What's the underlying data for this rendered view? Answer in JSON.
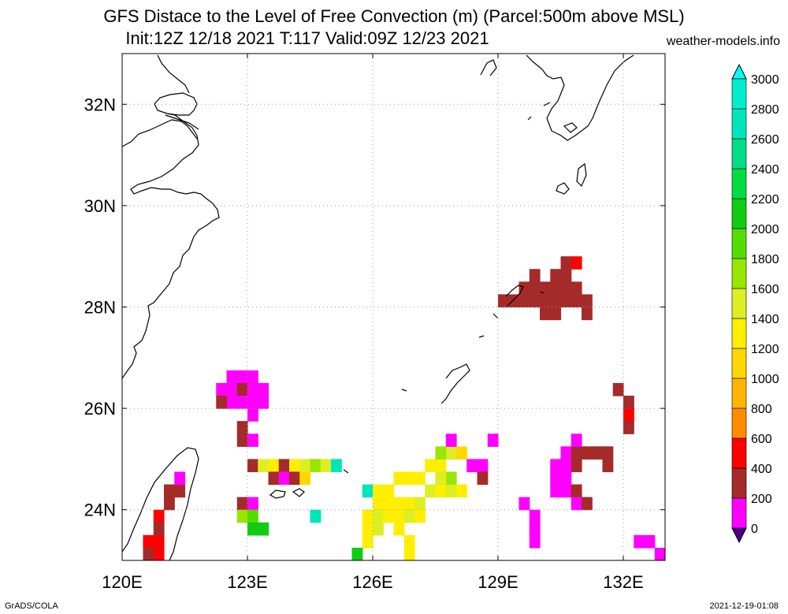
{
  "title_line1": "GFS Distace to the Level of Free Convection (m) (Parcel:500m above MSL)",
  "title_line2": "Init:12Z 12/18 2021 T:117 Valid:09Z 12/23 2021",
  "site": "weather-models.info",
  "credit": "GrADS/COLA",
  "timestamp": "2021-12-19-01:08",
  "map": {
    "lon_range": [
      120,
      133
    ],
    "lat_range": [
      23,
      33
    ],
    "lon_ticks": [
      {
        "value": 120,
        "label": "120E"
      },
      {
        "value": 123,
        "label": "123E"
      },
      {
        "value": 126,
        "label": "126E"
      },
      {
        "value": 129,
        "label": "129E"
      },
      {
        "value": 132,
        "label": "132E"
      }
    ],
    "lat_ticks": [
      {
        "value": 24,
        "label": "24N"
      },
      {
        "value": 26,
        "label": "26N"
      },
      {
        "value": 28,
        "label": "28N"
      },
      {
        "value": 30,
        "label": "30N"
      },
      {
        "value": 32,
        "label": "32N"
      }
    ],
    "grid": true,
    "grid_style": "dotted"
  },
  "colorbar": {
    "levels": [
      {
        "value": 0,
        "label": "0"
      },
      {
        "value": 200,
        "label": "200"
      },
      {
        "value": 400,
        "label": "400"
      },
      {
        "value": 600,
        "label": "600"
      },
      {
        "value": 800,
        "label": "800"
      },
      {
        "value": 1000,
        "label": "1000"
      },
      {
        "value": 1200,
        "label": "1200"
      },
      {
        "value": 1400,
        "label": "1400"
      },
      {
        "value": 1600,
        "label": "1600"
      },
      {
        "value": 1800,
        "label": "1800"
      },
      {
        "value": 2000,
        "label": "2000"
      },
      {
        "value": 2200,
        "label": "2200"
      },
      {
        "value": 2400,
        "label": "2400"
      },
      {
        "value": 2600,
        "label": "2600"
      },
      {
        "value": 2800,
        "label": "2800"
      },
      {
        "value": 3000,
        "label": "3000"
      }
    ],
    "colors": [
      "#4b0082",
      "#ff00ff",
      "#a52a2a",
      "#ff0000",
      "#ff8c00",
      "#ffb400",
      "#ffd700",
      "#ffee00",
      "#ddee22",
      "#99e600",
      "#55dd00",
      "#11cc11",
      "#00dd44",
      "#00dd88",
      "#00e6bb",
      "#00eecc",
      "#00ffff"
    ]
  },
  "chart_data": {
    "type": "heatmap",
    "variable": "Distance to LFC (m)",
    "cell_size_deg": 0.25,
    "cells": [
      {
        "lon": 129.0,
        "lat": 28.0,
        "v": 350
      },
      {
        "lon": 129.25,
        "lat": 28.0,
        "v": 350
      },
      {
        "lon": 129.5,
        "lat": 28.0,
        "v": 350
      },
      {
        "lon": 129.75,
        "lat": 28.0,
        "v": 350
      },
      {
        "lon": 130.0,
        "lat": 28.0,
        "v": 350
      },
      {
        "lon": 130.25,
        "lat": 28.0,
        "v": 350
      },
      {
        "lon": 130.5,
        "lat": 28.0,
        "v": 350
      },
      {
        "lon": 130.75,
        "lat": 28.0,
        "v": 350
      },
      {
        "lon": 131.0,
        "lat": 28.0,
        "v": 350
      },
      {
        "lon": 129.5,
        "lat": 28.25,
        "v": 350
      },
      {
        "lon": 129.75,
        "lat": 28.25,
        "v": 350
      },
      {
        "lon": 130.0,
        "lat": 28.25,
        "v": 350
      },
      {
        "lon": 130.25,
        "lat": 28.25,
        "v": 350
      },
      {
        "lon": 130.5,
        "lat": 28.25,
        "v": 350
      },
      {
        "lon": 130.75,
        "lat": 28.25,
        "v": 350
      },
      {
        "lon": 129.75,
        "lat": 28.5,
        "v": 350
      },
      {
        "lon": 130.25,
        "lat": 28.5,
        "v": 350
      },
      {
        "lon": 130.5,
        "lat": 28.5,
        "v": 350
      },
      {
        "lon": 130.5,
        "lat": 28.75,
        "v": 350
      },
      {
        "lon": 130.75,
        "lat": 28.75,
        "v": 500
      },
      {
        "lon": 130.0,
        "lat": 27.75,
        "v": 350
      },
      {
        "lon": 130.25,
        "lat": 27.75,
        "v": 350
      },
      {
        "lon": 131.0,
        "lat": 27.75,
        "v": 350
      },
      {
        "lon": 122.5,
        "lat": 26.5,
        "v": 150
      },
      {
        "lon": 122.75,
        "lat": 26.5,
        "v": 150
      },
      {
        "lon": 123.0,
        "lat": 26.5,
        "v": 150
      },
      {
        "lon": 122.25,
        "lat": 26.25,
        "v": 150
      },
      {
        "lon": 122.5,
        "lat": 26.25,
        "v": 150
      },
      {
        "lon": 122.75,
        "lat": 26.25,
        "v": 350
      },
      {
        "lon": 123.0,
        "lat": 26.25,
        "v": 150
      },
      {
        "lon": 123.25,
        "lat": 26.25,
        "v": 150
      },
      {
        "lon": 122.5,
        "lat": 26.0,
        "v": 150
      },
      {
        "lon": 122.75,
        "lat": 26.0,
        "v": 150
      },
      {
        "lon": 123.0,
        "lat": 26.0,
        "v": 150
      },
      {
        "lon": 123.25,
        "lat": 26.0,
        "v": 150
      },
      {
        "lon": 122.25,
        "lat": 26.0,
        "v": 350
      },
      {
        "lon": 123.0,
        "lat": 25.75,
        "v": 150
      },
      {
        "lon": 122.75,
        "lat": 25.5,
        "v": 350
      },
      {
        "lon": 122.75,
        "lat": 25.25,
        "v": 350
      },
      {
        "lon": 123.0,
        "lat": 25.25,
        "v": 150
      },
      {
        "lon": 123.0,
        "lat": 24.75,
        "v": 350
      },
      {
        "lon": 123.25,
        "lat": 24.75,
        "v": 1500
      },
      {
        "lon": 123.5,
        "lat": 24.75,
        "v": 1300
      },
      {
        "lon": 123.75,
        "lat": 24.75,
        "v": 350
      },
      {
        "lon": 124.0,
        "lat": 24.75,
        "v": 1300
      },
      {
        "lon": 124.25,
        "lat": 24.75,
        "v": 1500
      },
      {
        "lon": 124.5,
        "lat": 24.75,
        "v": 1700
      },
      {
        "lon": 124.75,
        "lat": 24.75,
        "v": 1500
      },
      {
        "lon": 125.0,
        "lat": 24.75,
        "v": 2700
      },
      {
        "lon": 123.5,
        "lat": 24.5,
        "v": 350
      },
      {
        "lon": 123.75,
        "lat": 24.5,
        "v": 150
      },
      {
        "lon": 124.0,
        "lat": 24.5,
        "v": 350
      },
      {
        "lon": 124.25,
        "lat": 24.5,
        "v": 1100
      },
      {
        "lon": 122.75,
        "lat": 24.0,
        "v": 350
      },
      {
        "lon": 123.0,
        "lat": 24.0,
        "v": 150
      },
      {
        "lon": 122.75,
        "lat": 23.75,
        "v": 1700
      },
      {
        "lon": 123.0,
        "lat": 23.75,
        "v": 1900
      },
      {
        "lon": 123.0,
        "lat": 23.5,
        "v": 2100
      },
      {
        "lon": 123.25,
        "lat": 23.5,
        "v": 2100
      },
      {
        "lon": 124.5,
        "lat": 23.75,
        "v": 2700
      },
      {
        "lon": 121.0,
        "lat": 24.25,
        "v": 350
      },
      {
        "lon": 121.25,
        "lat": 24.25,
        "v": 350
      },
      {
        "lon": 121.25,
        "lat": 24.5,
        "v": 150
      },
      {
        "lon": 121.0,
        "lat": 24.0,
        "v": 350
      },
      {
        "lon": 120.75,
        "lat": 23.75,
        "v": 500
      },
      {
        "lon": 120.75,
        "lat": 23.5,
        "v": 350
      },
      {
        "lon": 120.75,
        "lat": 23.25,
        "v": 500
      },
      {
        "lon": 120.5,
        "lat": 23.25,
        "v": 500
      },
      {
        "lon": 120.75,
        "lat": 23.0,
        "v": 500
      },
      {
        "lon": 120.5,
        "lat": 23.0,
        "v": 350
      },
      {
        "lon": 125.75,
        "lat": 24.25,
        "v": 2700
      },
      {
        "lon": 126.0,
        "lat": 24.25,
        "v": 1300
      },
      {
        "lon": 126.25,
        "lat": 24.25,
        "v": 1300
      },
      {
        "lon": 126.5,
        "lat": 24.5,
        "v": 1300
      },
      {
        "lon": 126.75,
        "lat": 24.5,
        "v": 1300
      },
      {
        "lon": 127.0,
        "lat": 24.5,
        "v": 1300
      },
      {
        "lon": 127.25,
        "lat": 24.75,
        "v": 1300
      },
      {
        "lon": 127.5,
        "lat": 24.75,
        "v": 1300
      },
      {
        "lon": 127.75,
        "lat": 25.0,
        "v": 1500
      },
      {
        "lon": 128.0,
        "lat": 25.0,
        "v": 1100
      },
      {
        "lon": 128.25,
        "lat": 24.75,
        "v": 150
      },
      {
        "lon": 126.0,
        "lat": 24.0,
        "v": 1300
      },
      {
        "lon": 126.25,
        "lat": 24.0,
        "v": 1300
      },
      {
        "lon": 126.5,
        "lat": 24.0,
        "v": 1300
      },
      {
        "lon": 126.75,
        "lat": 24.0,
        "v": 1300
      },
      {
        "lon": 127.0,
        "lat": 24.0,
        "v": 1500
      },
      {
        "lon": 127.25,
        "lat": 24.25,
        "v": 1500
      },
      {
        "lon": 127.5,
        "lat": 24.25,
        "v": 1300
      },
      {
        "lon": 127.75,
        "lat": 24.25,
        "v": 1500
      },
      {
        "lon": 127.75,
        "lat": 24.5,
        "v": 1700
      },
      {
        "lon": 127.5,
        "lat": 24.5,
        "v": 1500
      },
      {
        "lon": 125.75,
        "lat": 23.75,
        "v": 1300
      },
      {
        "lon": 126.0,
        "lat": 23.75,
        "v": 1500
      },
      {
        "lon": 126.25,
        "lat": 23.75,
        "v": 1300
      },
      {
        "lon": 126.5,
        "lat": 23.75,
        "v": 1300
      },
      {
        "lon": 126.75,
        "lat": 23.75,
        "v": 1500
      },
      {
        "lon": 127.0,
        "lat": 23.75,
        "v": 1300
      },
      {
        "lon": 125.75,
        "lat": 23.5,
        "v": 1300
      },
      {
        "lon": 126.0,
        "lat": 23.5,
        "v": 1500
      },
      {
        "lon": 126.5,
        "lat": 23.5,
        "v": 1300
      },
      {
        "lon": 125.75,
        "lat": 23.25,
        "v": 1300
      },
      {
        "lon": 126.75,
        "lat": 23.25,
        "v": 1300
      },
      {
        "lon": 126.75,
        "lat": 23.0,
        "v": 1300
      },
      {
        "lon": 125.5,
        "lat": 23.0,
        "v": 2100
      },
      {
        "lon": 127.5,
        "lat": 25.0,
        "v": 1700
      },
      {
        "lon": 127.75,
        "lat": 25.25,
        "v": 50
      },
      {
        "lon": 128.5,
        "lat": 24.75,
        "v": 50
      },
      {
        "lon": 128.5,
        "lat": 24.5,
        "v": 350
      },
      {
        "lon": 128.0,
        "lat": 24.25,
        "v": 1300
      },
      {
        "lon": 128.75,
        "lat": 25.25,
        "v": 50
      },
      {
        "lon": 130.25,
        "lat": 24.75,
        "v": 150
      },
      {
        "lon": 130.5,
        "lat": 24.75,
        "v": 150
      },
      {
        "lon": 130.25,
        "lat": 24.5,
        "v": 150
      },
      {
        "lon": 130.5,
        "lat": 24.5,
        "v": 150
      },
      {
        "lon": 130.25,
        "lat": 24.25,
        "v": 150
      },
      {
        "lon": 130.5,
        "lat": 24.25,
        "v": 150
      },
      {
        "lon": 130.75,
        "lat": 24.25,
        "v": 350
      },
      {
        "lon": 130.75,
        "lat": 24.0,
        "v": 150
      },
      {
        "lon": 131.0,
        "lat": 24.0,
        "v": 350
      },
      {
        "lon": 130.5,
        "lat": 25.0,
        "v": 150
      },
      {
        "lon": 130.75,
        "lat": 25.0,
        "v": 350
      },
      {
        "lon": 131.0,
        "lat": 25.0,
        "v": 350
      },
      {
        "lon": 131.25,
        "lat": 25.0,
        "v": 350
      },
      {
        "lon": 131.5,
        "lat": 25.0,
        "v": 350
      },
      {
        "lon": 131.5,
        "lat": 24.75,
        "v": 350
      },
      {
        "lon": 130.75,
        "lat": 25.25,
        "v": 150
      },
      {
        "lon": 130.75,
        "lat": 24.75,
        "v": 350
      },
      {
        "lon": 129.5,
        "lat": 24.0,
        "v": 150
      },
      {
        "lon": 129.75,
        "lat": 23.75,
        "v": 150
      },
      {
        "lon": 129.75,
        "lat": 23.5,
        "v": 150
      },
      {
        "lon": 129.75,
        "lat": 23.25,
        "v": 150
      },
      {
        "lon": 131.75,
        "lat": 26.25,
        "v": 350
      },
      {
        "lon": 132.0,
        "lat": 26.0,
        "v": 350
      },
      {
        "lon": 132.0,
        "lat": 25.75,
        "v": 500
      },
      {
        "lon": 132.0,
        "lat": 25.5,
        "v": 350
      },
      {
        "lon": 132.25,
        "lat": 23.25,
        "v": 150
      },
      {
        "lon": 132.5,
        "lat": 23.25,
        "v": 150
      },
      {
        "lon": 132.75,
        "lat": 23.0,
        "v": 150
      }
    ]
  }
}
